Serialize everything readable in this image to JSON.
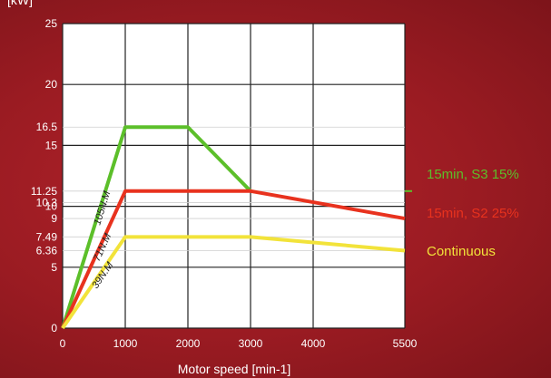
{
  "chart_data": {
    "type": "line",
    "ylabel": "[kW]",
    "xlabel": "Motor speed [min-1]",
    "x_ticks": [
      "0",
      "1000",
      "2000",
      "3000",
      "4000",
      "5500"
    ],
    "y_ticks": [
      "0",
      "5",
      "6.36",
      "7.49",
      "9",
      "10",
      "10.3",
      "11.25",
      "15",
      "16.5",
      "20",
      "25"
    ],
    "ylim": [
      0,
      25
    ],
    "grid": true,
    "legend_position": "right",
    "series": [
      {
        "name": "15min, S3 15%",
        "color": "#5cbf2a",
        "points": [
          [
            0,
            0
          ],
          [
            1000,
            16.5
          ],
          [
            2000,
            16.5
          ],
          [
            3000,
            11.25
          ]
        ]
      },
      {
        "name": "15min, S2 25%",
        "color": "#e8321e",
        "points": [
          [
            0,
            0
          ],
          [
            1000,
            11.25
          ],
          [
            3000,
            11.25
          ],
          [
            5500,
            9
          ]
        ]
      },
      {
        "name": "Continuous",
        "color": "#f2e33a",
        "points": [
          [
            0,
            0
          ],
          [
            1000,
            7.49
          ],
          [
            3000,
            7.49
          ],
          [
            5500,
            6.36
          ]
        ]
      }
    ],
    "annotations": [
      {
        "text": "105N.M",
        "series": 0
      },
      {
        "text": "71N.M",
        "series": 1
      },
      {
        "text": "39N.M",
        "series": 2
      }
    ]
  }
}
